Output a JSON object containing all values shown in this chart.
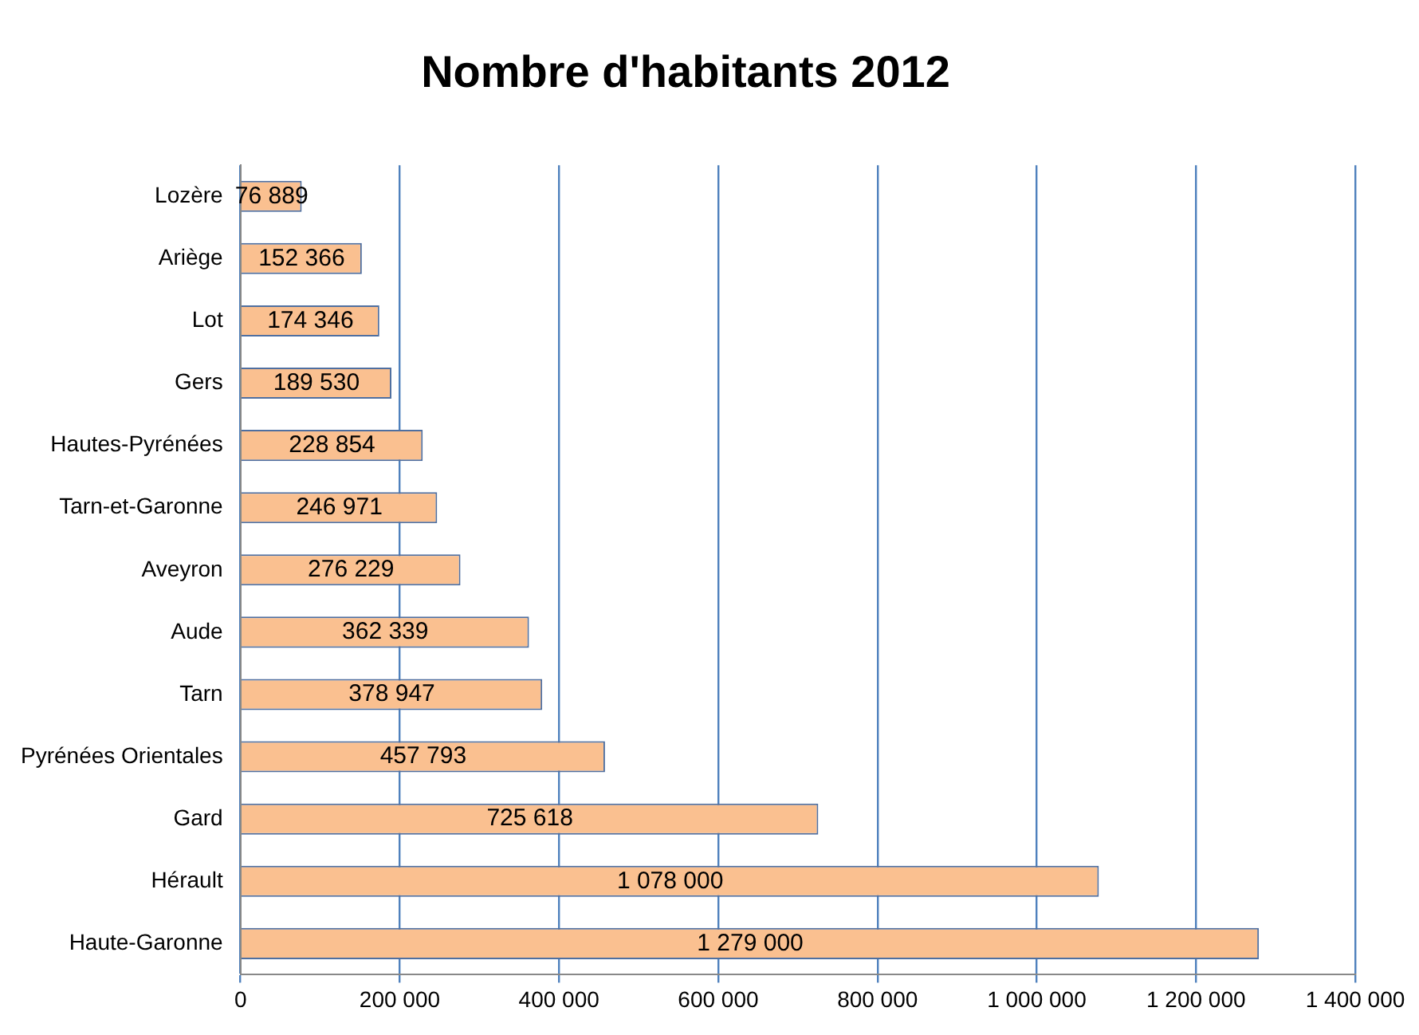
{
  "chart_data": {
    "type": "bar",
    "orientation": "horizontal",
    "title": "Nombre d'habitants 2012",
    "categories": [
      "Lozère",
      "Ariège",
      "Lot",
      "Gers",
      "Hautes-Pyrénées",
      "Tarn-et-Garonne",
      "Aveyron",
      "Aude",
      "Tarn",
      "Pyrénées Orientales",
      "Gard",
      "Hérault",
      "Haute-Garonne"
    ],
    "values": [
      76889,
      152366,
      174346,
      189530,
      228854,
      246971,
      276229,
      362339,
      378947,
      457793,
      725618,
      1078000,
      1279000
    ],
    "value_labels": [
      "76 889",
      "152 366",
      "174 346",
      "189 530",
      "228 854",
      "246 971",
      "276 229",
      "362 339",
      "378 947",
      "457 793",
      "725 618",
      "1 078 000",
      "1 279 000"
    ],
    "color": "#fac090",
    "xlim": [
      0,
      1400000
    ],
    "xticks": [
      {
        "value": 0,
        "label": "0"
      },
      {
        "value": 200000,
        "label": "200 000"
      },
      {
        "value": 400000,
        "label": "400 000"
      },
      {
        "value": 600000,
        "label": "600 000"
      },
      {
        "value": 800000,
        "label": "800 000"
      },
      {
        "value": 1000000,
        "label": "1 000 000"
      },
      {
        "value": 1200000,
        "label": "1 200 000"
      },
      {
        "value": 1400000,
        "label": "1 400 000"
      }
    ],
    "grid": "x",
    "legend": false
  }
}
